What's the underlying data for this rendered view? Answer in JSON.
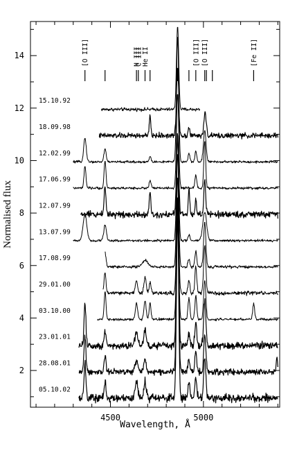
{
  "chart_data": {
    "type": "line",
    "title": "",
    "xlabel": "Wavelength, Å",
    "ylabel": "Normalised flux",
    "xlim": [
      4070,
      5410
    ],
    "ylim": [
      0.6,
      15.3
    ],
    "xticks": [
      4500,
      5000
    ],
    "xtick_labels": [
      "4500",
      "5000"
    ],
    "yticks": [
      2,
      4,
      6,
      8,
      10,
      12,
      14
    ],
    "ytick_labels": [
      "2",
      "4",
      "6",
      "8",
      "10",
      "12",
      "14"
    ],
    "legend": "none",
    "grid": false,
    "line_markers": [
      {
        "label": "[O III]",
        "wavelength": 4363,
        "labeled": true
      },
      {
        "label": "",
        "wavelength": 4471,
        "labeled": false
      },
      {
        "label": "N III",
        "wavelength": 4640,
        "labeled": true
      },
      {
        "label": "C III",
        "wavelength": 4650,
        "labeled": true
      },
      {
        "label": "He II",
        "wavelength": 4686,
        "labeled": true
      },
      {
        "label": "",
        "wavelength": 4713,
        "labeled": false
      },
      {
        "label": "",
        "wavelength": 4861,
        "labeled": false
      },
      {
        "label": "",
        "wavelength": 4922,
        "labeled": false
      },
      {
        "label": "[O III]",
        "wavelength": 4959,
        "labeled": true
      },
      {
        "label": "[O III]",
        "wavelength": 5007,
        "labeled": true
      },
      {
        "label": "",
        "wavelength": 5016,
        "labeled": false
      },
      {
        "label": "",
        "wavelength": 5048,
        "labeled": false
      },
      {
        "label": "[Fe II]",
        "wavelength": 5270,
        "labeled": true
      }
    ],
    "series": [
      {
        "name": "15.10.92",
        "offset": 11.95,
        "xrange": [
          4450,
          4980
        ],
        "noise": 0.07,
        "lines": [
          [
            4861,
            3.2,
            6
          ],
          [
            5007,
            0.1,
            4
          ]
        ]
      },
      {
        "name": "18.09.98",
        "offset": 10.95,
        "xrange": [
          4440,
          5400
        ],
        "noise": 0.11,
        "lines": [
          [
            4713,
            0.75,
            4
          ],
          [
            4861,
            2.6,
            6
          ],
          [
            4922,
            0.35,
            4
          ],
          [
            5007,
            0.85,
            5
          ],
          [
            5016,
            0.3,
            4
          ]
        ]
      },
      {
        "name": "12.02.99",
        "offset": 9.95,
        "xrange": [
          4300,
          5400
        ],
        "noise": 0.05,
        "lines": [
          [
            4363,
            0.9,
            7
          ],
          [
            4471,
            0.5,
            6
          ],
          [
            4713,
            0.2,
            5
          ],
          [
            4861,
            4.8,
            6
          ],
          [
            4922,
            0.3,
            5
          ],
          [
            4959,
            0.4,
            5
          ],
          [
            5007,
            1.2,
            7
          ]
        ]
      },
      {
        "name": "17.06.99",
        "offset": 8.95,
        "xrange": [
          4300,
          5400
        ],
        "noise": 0.05,
        "lines": [
          [
            4363,
            0.85,
            5
          ],
          [
            4471,
            1.05,
            5
          ],
          [
            4713,
            0.3,
            5
          ],
          [
            4861,
            3.6,
            6
          ],
          [
            4959,
            0.5,
            5
          ],
          [
            5007,
            1.8,
            5
          ]
        ]
      },
      {
        "name": "12.07.99",
        "offset": 7.95,
        "xrange": [
          4340,
          5400
        ],
        "noise": 0.14,
        "lines": [
          [
            4471,
            1.1,
            5
          ],
          [
            4713,
            0.9,
            4
          ],
          [
            4861,
            3.0,
            6
          ],
          [
            4922,
            0.9,
            4
          ],
          [
            4959,
            0.6,
            4
          ],
          [
            5007,
            1.3,
            5
          ]
        ]
      },
      {
        "name": "13.07.99",
        "offset": 6.95,
        "xrange": [
          4300,
          5400
        ],
        "noise": 0.05,
        "lines": [
          [
            4363,
            1.0,
            10
          ],
          [
            4471,
            0.6,
            7
          ],
          [
            4861,
            3.9,
            6
          ],
          [
            4922,
            0.2,
            5
          ],
          [
            5007,
            1.1,
            10
          ]
        ]
      },
      {
        "name": "17.08.99",
        "offset": 5.95,
        "xrange": [
          4470,
          5400
        ],
        "noise": 0.06,
        "lines": [
          [
            4471,
            0.55,
            5
          ],
          [
            4686,
            0.25,
            14
          ],
          [
            4861,
            4.3,
            6
          ],
          [
            4922,
            0.3,
            5
          ],
          [
            4959,
            0.6,
            5
          ],
          [
            5007,
            1.7,
            6
          ]
        ]
      },
      {
        "name": "29.01.00",
        "offset": 4.95,
        "xrange": [
          4460,
          5400
        ],
        "noise": 0.08,
        "lines": [
          [
            4471,
            0.8,
            5
          ],
          [
            4640,
            0.5,
            6
          ],
          [
            4686,
            0.6,
            6
          ],
          [
            4713,
            0.4,
            5
          ],
          [
            4861,
            4.4,
            6
          ],
          [
            4922,
            0.5,
            5
          ],
          [
            4959,
            1.0,
            5
          ],
          [
            5007,
            1.8,
            6
          ]
        ]
      },
      {
        "name": "03.10.00",
        "offset": 3.95,
        "xrange": [
          4430,
          5400
        ],
        "noise": 0.05,
        "lines": [
          [
            4471,
            1.05,
            5
          ],
          [
            4640,
            0.6,
            6
          ],
          [
            4686,
            0.7,
            6
          ],
          [
            4713,
            0.6,
            5
          ],
          [
            4861,
            4.7,
            6
          ],
          [
            4922,
            0.8,
            5
          ],
          [
            4959,
            0.9,
            5
          ],
          [
            5007,
            1.5,
            6
          ],
          [
            5270,
            0.6,
            5
          ]
        ]
      },
      {
        "name": "23.01.01",
        "offset": 2.95,
        "xrange": [
          4330,
          5400
        ],
        "noise": 0.16,
        "lines": [
          [
            4363,
            1.6,
            5
          ],
          [
            4471,
            0.6,
            5
          ],
          [
            4640,
            0.5,
            8
          ],
          [
            4686,
            0.6,
            6
          ],
          [
            4861,
            5.6,
            6
          ],
          [
            4922,
            0.5,
            5
          ],
          [
            4959,
            0.9,
            5
          ],
          [
            5007,
            1.7,
            6
          ]
        ]
      },
      {
        "name": "28.08.01",
        "offset": 1.95,
        "xrange": [
          4330,
          5400
        ],
        "noise": 0.13,
        "lines": [
          [
            4363,
            1.4,
            5
          ],
          [
            4471,
            0.6,
            5
          ],
          [
            4640,
            0.4,
            8
          ],
          [
            4686,
            0.5,
            6
          ],
          [
            4861,
            6.4,
            6
          ],
          [
            4922,
            0.5,
            5
          ],
          [
            4959,
            0.8,
            5
          ],
          [
            5007,
            1.4,
            6
          ],
          [
            5395,
            0.5,
            4
          ]
        ]
      },
      {
        "name": "05.10.02",
        "offset": 0.95,
        "xrange": [
          4330,
          5400
        ],
        "noise": 0.17,
        "lines": [
          [
            4363,
            1.3,
            5
          ],
          [
            4471,
            0.6,
            5
          ],
          [
            4640,
            0.6,
            8
          ],
          [
            4686,
            0.6,
            6
          ],
          [
            4861,
            6.9,
            6
          ],
          [
            4922,
            0.6,
            5
          ],
          [
            4959,
            0.8,
            5
          ],
          [
            5007,
            1.5,
            6
          ]
        ]
      }
    ]
  }
}
